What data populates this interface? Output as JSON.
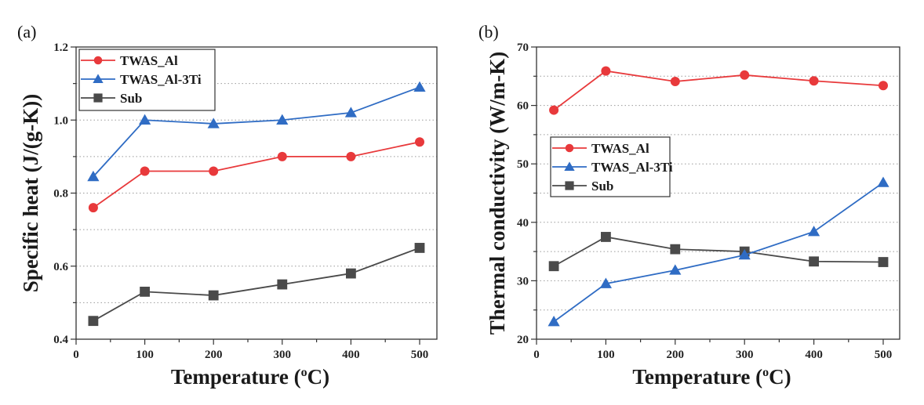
{
  "chart_data": [
    {
      "type": "line",
      "panel_label": "(a)",
      "title": "",
      "xlabel": "Temperature (°C)",
      "xlabel_main": "Temperature (",
      "xlabel_sup": "o",
      "xlabel_end": "C)",
      "ylabel": "Specific heat (J/(g-K))",
      "xlim": [
        0,
        525
      ],
      "ylim": [
        0.4,
        1.2
      ],
      "xticks": [
        0,
        100,
        200,
        300,
        400,
        500
      ],
      "xtick_labels": [
        "0",
        "100",
        "200",
        "300",
        "400",
        "500"
      ],
      "yticks": [
        0.4,
        0.6,
        0.8,
        1.0,
        1.2
      ],
      "ytick_labels": [
        "0.4",
        "0.6",
        "0.8",
        "1.0",
        "1.2"
      ],
      "grid_y": [
        0.5,
        0.6,
        0.7,
        0.8,
        0.9,
        1.0,
        1.1
      ],
      "grid": "dotted horizontal",
      "legend_position": "top-left",
      "x": [
        25,
        100,
        200,
        300,
        400,
        500
      ],
      "series": [
        {
          "name": "TWAS_Al",
          "marker": "circle",
          "color": "#e8393b",
          "values": [
            0.76,
            0.86,
            0.86,
            0.9,
            0.9,
            0.94
          ]
        },
        {
          "name": "TWAS_Al-3Ti",
          "marker": "triangle",
          "color": "#2f6cc4",
          "values": [
            0.845,
            1.0,
            0.99,
            1.0,
            1.02,
            1.09
          ]
        },
        {
          "name": "Sub",
          "marker": "square",
          "color": "#4a4a4a",
          "values": [
            0.45,
            0.53,
            0.52,
            0.55,
            0.58,
            0.65
          ]
        }
      ]
    },
    {
      "type": "line",
      "panel_label": "(b)",
      "title": "",
      "xlabel": "Temperature (°C)",
      "xlabel_main": "Temperature (",
      "xlabel_sup": "o",
      "xlabel_end": "C)",
      "ylabel": "Thermal conductivity (W/m-K)",
      "xlim": [
        0,
        525
      ],
      "ylim": [
        20,
        70
      ],
      "xticks": [
        0,
        100,
        200,
        300,
        400,
        500
      ],
      "xtick_labels": [
        "0",
        "100",
        "200",
        "300",
        "400",
        "500"
      ],
      "yticks": [
        20,
        30,
        40,
        50,
        60,
        70
      ],
      "ytick_labels": [
        "20",
        "30",
        "40",
        "50",
        "60",
        "70"
      ],
      "grid_y": [
        25,
        30,
        35,
        40,
        45,
        50,
        55,
        60,
        65
      ],
      "grid": "dotted horizontal",
      "legend_position": "center-left",
      "x": [
        25,
        100,
        200,
        300,
        400,
        500
      ],
      "series": [
        {
          "name": "TWAS_Al",
          "marker": "circle",
          "color": "#e8393b",
          "values": [
            59.2,
            65.9,
            64.1,
            65.2,
            64.2,
            63.4
          ]
        },
        {
          "name": "TWAS_Al-3Ti",
          "marker": "triangle",
          "color": "#2f6cc4",
          "values": [
            23.0,
            29.5,
            31.8,
            34.4,
            38.4,
            46.8
          ]
        },
        {
          "name": "Sub",
          "marker": "square",
          "color": "#4a4a4a",
          "values": [
            32.5,
            37.5,
            35.4,
            35.0,
            33.3,
            33.2
          ]
        }
      ]
    }
  ]
}
